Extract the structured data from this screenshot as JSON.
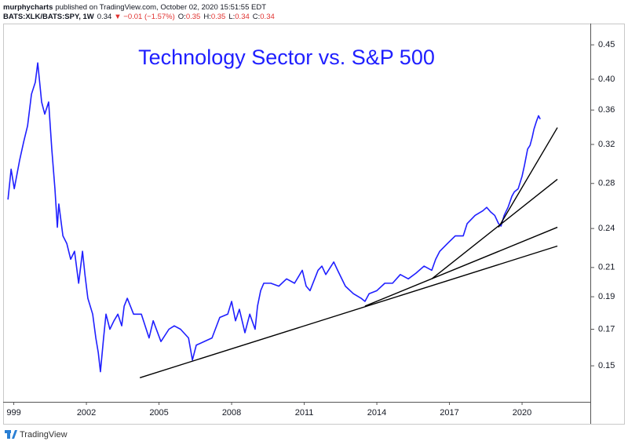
{
  "chart_data": {
    "type": "line",
    "publisher": "murphycharts",
    "published_note": "published on TradingView.com, October 02, 2020 15:51:55 EDT",
    "symbol": "BATS:XLK/BATS:SPY, 1W",
    "last": "0.34",
    "change": "▼ −0.01 (−1.57%)",
    "ohlc": [
      {
        "label": "O:",
        "value": "0.35"
      },
      {
        "label": "H:",
        "value": "0.35"
      },
      {
        "label": "L:",
        "value": "0.34"
      },
      {
        "label": "C:",
        "value": "0.34"
      }
    ],
    "title": "Technology Sector vs. S&P 500",
    "brand": "TradingView",
    "yscale": "log",
    "y_axis_side": "right",
    "grid": false,
    "xlim": [
      1998.69,
      2022.82
    ],
    "ylim": [
      0.1326,
      0.484
    ],
    "xticks": [
      {
        "value": 1999,
        "label": "999"
      },
      2002,
      2005,
      2008,
      2011,
      2014,
      2017,
      2020
    ],
    "yticks": [
      0.15,
      0.17,
      0.19,
      0.21,
      0.24,
      0.28,
      0.32,
      0.36,
      {
        "value": 0.4,
        "label": "0.40"
      },
      0.45
    ],
    "series": [
      {
        "color": "#1f1fff",
        "x": [
          1998.76,
          1998.89,
          1999.02,
          1999.24,
          1999.41,
          1999.57,
          1999.73,
          1999.89,
          1999.99,
          2000.15,
          2000.28,
          2000.44,
          2000.57,
          2000.7,
          2000.8,
          2000.86,
          2001.03,
          2001.19,
          2001.35,
          2001.51,
          2001.68,
          2001.84,
          2001.94,
          2002.06,
          2002.26,
          2002.39,
          2002.49,
          2002.58,
          2002.71,
          2002.81,
          2002.97,
          2003.14,
          2003.3,
          2003.46,
          2003.56,
          2003.69,
          2003.95,
          2004.27,
          2004.59,
          2004.76,
          2005.08,
          2005.41,
          2005.63,
          2005.89,
          2006.22,
          2006.38,
          2006.54,
          2006.87,
          2007.19,
          2007.51,
          2007.84,
          2008.0,
          2008.16,
          2008.32,
          2008.55,
          2008.75,
          2008.97,
          2009.07,
          2009.2,
          2009.33,
          2009.62,
          2009.95,
          2010.27,
          2010.6,
          2010.92,
          2011.08,
          2011.24,
          2011.57,
          2011.73,
          2011.89,
          2012.22,
          2012.38,
          2012.7,
          2013.03,
          2013.35,
          2013.51,
          2013.68,
          2014.0,
          2014.33,
          2014.65,
          2014.97,
          2015.3,
          2015.62,
          2015.95,
          2016.27,
          2016.43,
          2016.6,
          2016.92,
          2017.24,
          2017.57,
          2017.73,
          2018.06,
          2018.38,
          2018.54,
          2018.7,
          2018.87,
          2019.03,
          2019.13,
          2019.26,
          2019.42,
          2019.58,
          2019.68,
          2019.84,
          2020.0,
          2020.1,
          2020.23,
          2020.33,
          2020.42,
          2020.49,
          2020.59,
          2020.68,
          2020.75
        ],
        "values": [
          0.265,
          0.294,
          0.275,
          0.303,
          0.323,
          0.341,
          0.38,
          0.396,
          0.423,
          0.37,
          0.355,
          0.37,
          0.315,
          0.275,
          0.241,
          0.261,
          0.234,
          0.228,
          0.216,
          0.222,
          0.199,
          0.222,
          0.205,
          0.189,
          0.179,
          0.165,
          0.157,
          0.147,
          0.165,
          0.179,
          0.17,
          0.175,
          0.179,
          0.172,
          0.184,
          0.189,
          0.179,
          0.179,
          0.165,
          0.175,
          0.163,
          0.17,
          0.172,
          0.17,
          0.165,
          0.153,
          0.161,
          0.163,
          0.165,
          0.177,
          0.179,
          0.187,
          0.175,
          0.182,
          0.168,
          0.179,
          0.17,
          0.184,
          0.194,
          0.199,
          0.199,
          0.197,
          0.202,
          0.199,
          0.208,
          0.197,
          0.194,
          0.208,
          0.211,
          0.205,
          0.214,
          0.208,
          0.197,
          0.192,
          0.189,
          0.187,
          0.192,
          0.194,
          0.199,
          0.199,
          0.205,
          0.202,
          0.206,
          0.211,
          0.208,
          0.216,
          0.222,
          0.228,
          0.234,
          0.234,
          0.244,
          0.251,
          0.255,
          0.258,
          0.254,
          0.251,
          0.244,
          0.242,
          0.251,
          0.258,
          0.268,
          0.272,
          0.275,
          0.287,
          0.298,
          0.315,
          0.319,
          0.328,
          0.337,
          0.346,
          0.353,
          0.349
        ]
      },
      {
        "color": "#000000",
        "x": [
          2004.21,
          2021.46
        ],
        "values": [
          0.144,
          0.226
        ]
      },
      {
        "color": "#000000",
        "x": [
          2013.51,
          2021.46
        ],
        "values": [
          0.184,
          0.241
        ]
      },
      {
        "color": "#000000",
        "x": [
          2016.27,
          2021.46
        ],
        "values": [
          0.202,
          0.284
        ]
      },
      {
        "color": "#000000",
        "x": [
          2019.03,
          2021.46
        ],
        "values": [
          0.241,
          0.339
        ]
      }
    ]
  }
}
